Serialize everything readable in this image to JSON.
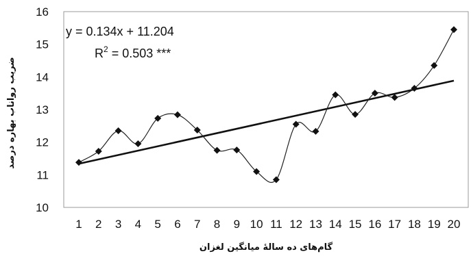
{
  "chart_data": {
    "type": "line",
    "xlabel": "گام‌های ده سالهٔ میانگین لغزان",
    "ylabel": "ضریب رواناب بهاره درصد",
    "x": [
      1,
      2,
      3,
      4,
      5,
      6,
      7,
      8,
      9,
      10,
      11,
      12,
      13,
      14,
      15,
      16,
      17,
      18,
      19,
      20
    ],
    "y": [
      11.38,
      11.72,
      12.35,
      11.95,
      12.73,
      12.84,
      12.37,
      11.75,
      11.76,
      11.1,
      10.85,
      12.55,
      12.33,
      13.45,
      12.85,
      13.5,
      13.37,
      13.65,
      14.35,
      15.45
    ],
    "ylim": [
      10,
      16
    ],
    "xlim": [
      1,
      20
    ],
    "yticks": [
      10,
      11,
      12,
      13,
      14,
      15,
      16
    ],
    "trendline": {
      "slope": 0.134,
      "intercept": 11.204
    },
    "equation_text": "y = 0.134x + 11.204",
    "r2_label": "R",
    "r2_sup": "2",
    "r2_value_text": " = 0.503 ***",
    "grid": false,
    "marker": "diamond",
    "smooth": true
  }
}
